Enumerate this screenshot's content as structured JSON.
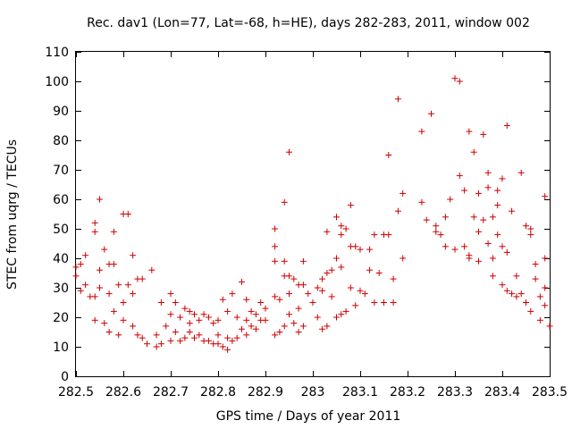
{
  "chart_data": {
    "type": "scatter",
    "title": "Rec. dav1 (Lon=77, Lat=-68, h=HE), days 282-283, 2011, window 002",
    "xlabel": "GPS time / Days of year 2011",
    "ylabel": "STEC from uqrg / TECUs",
    "xlim": [
      282.5,
      283.5
    ],
    "ylim": [
      0,
      110
    ],
    "xticks": [
      282.5,
      282.6,
      282.7,
      282.8,
      282.9,
      283.0,
      283.1,
      283.2,
      283.3,
      283.4,
      283.5
    ],
    "xtick_labels": [
      "282.5",
      "282.6",
      "282.7",
      "282.8",
      "282.9",
      "283",
      "283.1",
      "283.2",
      "283.3",
      "283.4",
      "283.5"
    ],
    "yticks": [
      0,
      10,
      20,
      30,
      40,
      50,
      60,
      70,
      80,
      90,
      100,
      110
    ],
    "ytick_labels": [
      "0",
      "10",
      "20",
      "30",
      "40",
      "50",
      "60",
      "70",
      "80",
      "90",
      "100",
      "110"
    ],
    "grid": false,
    "marker": "+",
    "color": "#cc0000",
    "points": [
      [
        282.5,
        37
      ],
      [
        282.5,
        34
      ],
      [
        282.51,
        38
      ],
      [
        282.51,
        29
      ],
      [
        282.52,
        41
      ],
      [
        282.52,
        31
      ],
      [
        282.53,
        27
      ],
      [
        282.54,
        52
      ],
      [
        282.54,
        49
      ],
      [
        282.54,
        27
      ],
      [
        282.54,
        19
      ],
      [
        282.55,
        36
      ],
      [
        282.55,
        60
      ],
      [
        282.55,
        30
      ],
      [
        282.56,
        18
      ],
      [
        282.56,
        43
      ],
      [
        282.57,
        38
      ],
      [
        282.57,
        28
      ],
      [
        282.57,
        15
      ],
      [
        282.58,
        49
      ],
      [
        282.58,
        38
      ],
      [
        282.58,
        22
      ],
      [
        282.59,
        14
      ],
      [
        282.59,
        31
      ],
      [
        282.6,
        55
      ],
      [
        282.6,
        25
      ],
      [
        282.6,
        19
      ],
      [
        282.61,
        55
      ],
      [
        282.61,
        31
      ],
      [
        282.62,
        41
      ],
      [
        282.62,
        28
      ],
      [
        282.62,
        17
      ],
      [
        282.63,
        33
      ],
      [
        282.63,
        14
      ],
      [
        282.64,
        33
      ],
      [
        282.64,
        13
      ],
      [
        282.65,
        11
      ],
      [
        282.66,
        36
      ],
      [
        282.67,
        10
      ],
      [
        282.67,
        14
      ],
      [
        282.68,
        25
      ],
      [
        282.68,
        11
      ],
      [
        282.69,
        17
      ],
      [
        282.7,
        28
      ],
      [
        282.7,
        21
      ],
      [
        282.7,
        12
      ],
      [
        282.71,
        15
      ],
      [
        282.71,
        25
      ],
      [
        282.72,
        20
      ],
      [
        282.72,
        12
      ],
      [
        282.73,
        23
      ],
      [
        282.73,
        13
      ],
      [
        282.74,
        15
      ],
      [
        282.74,
        22
      ],
      [
        282.74,
        18
      ],
      [
        282.75,
        13
      ],
      [
        282.75,
        21
      ],
      [
        282.76,
        14
      ],
      [
        282.76,
        19
      ],
      [
        282.77,
        12
      ],
      [
        282.77,
        21
      ],
      [
        282.78,
        12
      ],
      [
        282.78,
        20
      ],
      [
        282.79,
        11
      ],
      [
        282.79,
        18
      ],
      [
        282.8,
        14
      ],
      [
        282.8,
        11
      ],
      [
        282.8,
        19
      ],
      [
        282.81,
        10
      ],
      [
        282.81,
        26
      ],
      [
        282.82,
        9
      ],
      [
        282.82,
        13
      ],
      [
        282.82,
        22
      ],
      [
        282.83,
        12
      ],
      [
        282.83,
        28
      ],
      [
        282.84,
        13
      ],
      [
        282.84,
        20
      ],
      [
        282.85,
        16
      ],
      [
        282.85,
        32
      ],
      [
        282.86,
        14
      ],
      [
        282.86,
        19
      ],
      [
        282.86,
        26
      ],
      [
        282.87,
        17
      ],
      [
        282.87,
        22
      ],
      [
        282.88,
        16
      ],
      [
        282.88,
        21
      ],
      [
        282.89,
        19
      ],
      [
        282.89,
        25
      ],
      [
        282.9,
        19
      ],
      [
        282.9,
        23
      ],
      [
        282.92,
        27
      ],
      [
        282.92,
        44
      ],
      [
        282.92,
        50
      ],
      [
        282.92,
        39
      ],
      [
        282.92,
        14
      ],
      [
        282.93,
        15
      ],
      [
        282.93,
        26
      ],
      [
        282.94,
        59
      ],
      [
        282.94,
        39
      ],
      [
        282.94,
        34
      ],
      [
        282.94,
        17
      ],
      [
        282.95,
        76
      ],
      [
        282.95,
        34
      ],
      [
        282.95,
        28
      ],
      [
        282.95,
        21
      ],
      [
        282.96,
        33
      ],
      [
        282.96,
        18
      ],
      [
        282.97,
        31
      ],
      [
        282.97,
        23
      ],
      [
        282.97,
        15
      ],
      [
        282.98,
        39
      ],
      [
        282.98,
        31
      ],
      [
        282.98,
        17
      ],
      [
        282.99,
        28
      ],
      [
        283.0,
        25
      ],
      [
        283.01,
        30
      ],
      [
        283.01,
        20
      ],
      [
        283.02,
        29
      ],
      [
        283.02,
        16
      ],
      [
        283.02,
        33
      ],
      [
        283.03,
        17
      ],
      [
        283.03,
        49
      ],
      [
        283.03,
        35
      ],
      [
        283.04,
        36
      ],
      [
        283.04,
        27
      ],
      [
        283.05,
        54
      ],
      [
        283.05,
        40
      ],
      [
        283.05,
        20
      ],
      [
        283.06,
        51
      ],
      [
        283.06,
        37
      ],
      [
        283.06,
        21
      ],
      [
        283.06,
        48
      ],
      [
        283.07,
        22
      ],
      [
        283.07,
        50
      ],
      [
        283.08,
        58
      ],
      [
        283.08,
        44
      ],
      [
        283.08,
        30
      ],
      [
        283.09,
        24
      ],
      [
        283.09,
        44
      ],
      [
        283.1,
        29
      ],
      [
        283.1,
        43
      ],
      [
        283.11,
        28
      ],
      [
        283.12,
        43
      ],
      [
        283.12,
        36
      ],
      [
        283.13,
        25
      ],
      [
        283.13,
        48
      ],
      [
        283.14,
        35
      ],
      [
        283.15,
        48
      ],
      [
        283.15,
        25
      ],
      [
        283.16,
        75
      ],
      [
        283.16,
        48
      ],
      [
        283.17,
        25
      ],
      [
        283.17,
        33
      ],
      [
        283.18,
        94
      ],
      [
        283.18,
        56
      ],
      [
        283.19,
        62
      ],
      [
        283.19,
        40
      ],
      [
        283.23,
        83
      ],
      [
        283.23,
        59
      ],
      [
        283.24,
        53
      ],
      [
        283.25,
        89
      ],
      [
        283.26,
        51
      ],
      [
        283.26,
        49
      ],
      [
        283.27,
        48
      ],
      [
        283.28,
        44
      ],
      [
        283.28,
        54
      ],
      [
        283.29,
        60
      ],
      [
        283.3,
        101
      ],
      [
        283.3,
        43
      ],
      [
        283.31,
        100
      ],
      [
        283.31,
        68
      ],
      [
        283.32,
        44
      ],
      [
        283.32,
        63
      ],
      [
        283.33,
        83
      ],
      [
        283.33,
        41
      ],
      [
        283.33,
        40
      ],
      [
        283.34,
        76
      ],
      [
        283.34,
        54
      ],
      [
        283.35,
        49
      ],
      [
        283.35,
        62
      ],
      [
        283.35,
        39
      ],
      [
        283.36,
        82
      ],
      [
        283.36,
        53
      ],
      [
        283.37,
        69
      ],
      [
        283.37,
        64
      ],
      [
        283.37,
        45
      ],
      [
        283.38,
        54
      ],
      [
        283.38,
        40
      ],
      [
        283.38,
        34
      ],
      [
        283.39,
        63
      ],
      [
        283.39,
        58
      ],
      [
        283.39,
        48
      ],
      [
        283.4,
        67
      ],
      [
        283.4,
        44
      ],
      [
        283.4,
        31
      ],
      [
        283.41,
        85
      ],
      [
        283.41,
        42
      ],
      [
        283.41,
        29
      ],
      [
        283.42,
        56
      ],
      [
        283.42,
        28
      ],
      [
        283.43,
        34
      ],
      [
        283.43,
        27
      ],
      [
        283.44,
        69
      ],
      [
        283.44,
        28
      ],
      [
        283.45,
        51
      ],
      [
        283.45,
        25
      ],
      [
        283.46,
        50
      ],
      [
        283.46,
        48
      ],
      [
        283.46,
        22
      ],
      [
        283.47,
        38
      ],
      [
        283.47,
        33
      ],
      [
        283.48,
        27
      ],
      [
        283.48,
        19
      ],
      [
        283.49,
        61
      ],
      [
        283.49,
        40
      ],
      [
        283.49,
        30
      ],
      [
        283.49,
        24
      ],
      [
        283.5,
        17
      ]
    ]
  }
}
